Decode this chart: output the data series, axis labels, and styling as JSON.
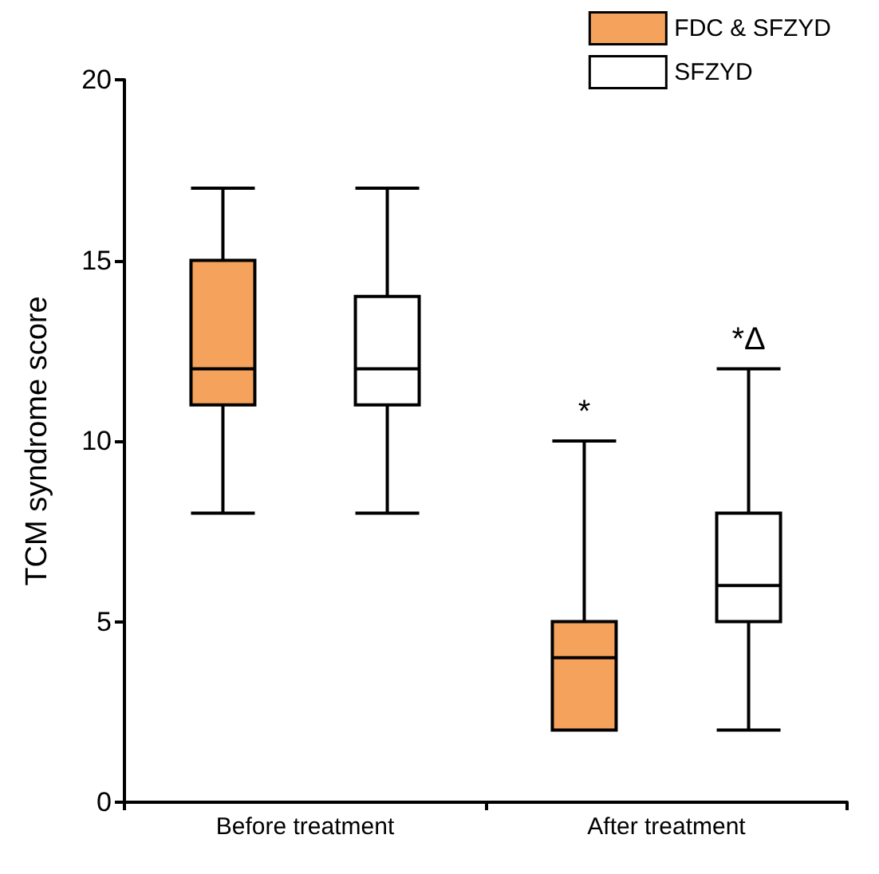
{
  "chart_data": {
    "type": "box",
    "ylabel": "TCM syndrome score",
    "categories": [
      "Before treatment",
      "After treatment"
    ],
    "ylim": [
      0,
      20
    ],
    "yticks": [
      0,
      5,
      10,
      15,
      20
    ],
    "grid": false,
    "legend": "top right",
    "series": [
      {
        "name": "FDC & SFZYD",
        "color": "#f5a35c",
        "boxes": [
          {
            "low": 8,
            "q1": 11,
            "median": 12,
            "q3": 15,
            "high": 17
          },
          {
            "low": 2,
            "q1": 2,
            "median": 4,
            "q3": 5,
            "high": 10
          }
        ]
      },
      {
        "name": "SFZYD",
        "color": "#ffffff",
        "boxes": [
          {
            "low": 8,
            "q1": 11,
            "median": 12,
            "q3": 14,
            "high": 17
          },
          {
            "low": 2,
            "q1": 5,
            "median": 6,
            "q3": 8,
            "high": 12
          }
        ]
      }
    ],
    "annotations": [
      "*",
      "*Δ"
    ]
  }
}
